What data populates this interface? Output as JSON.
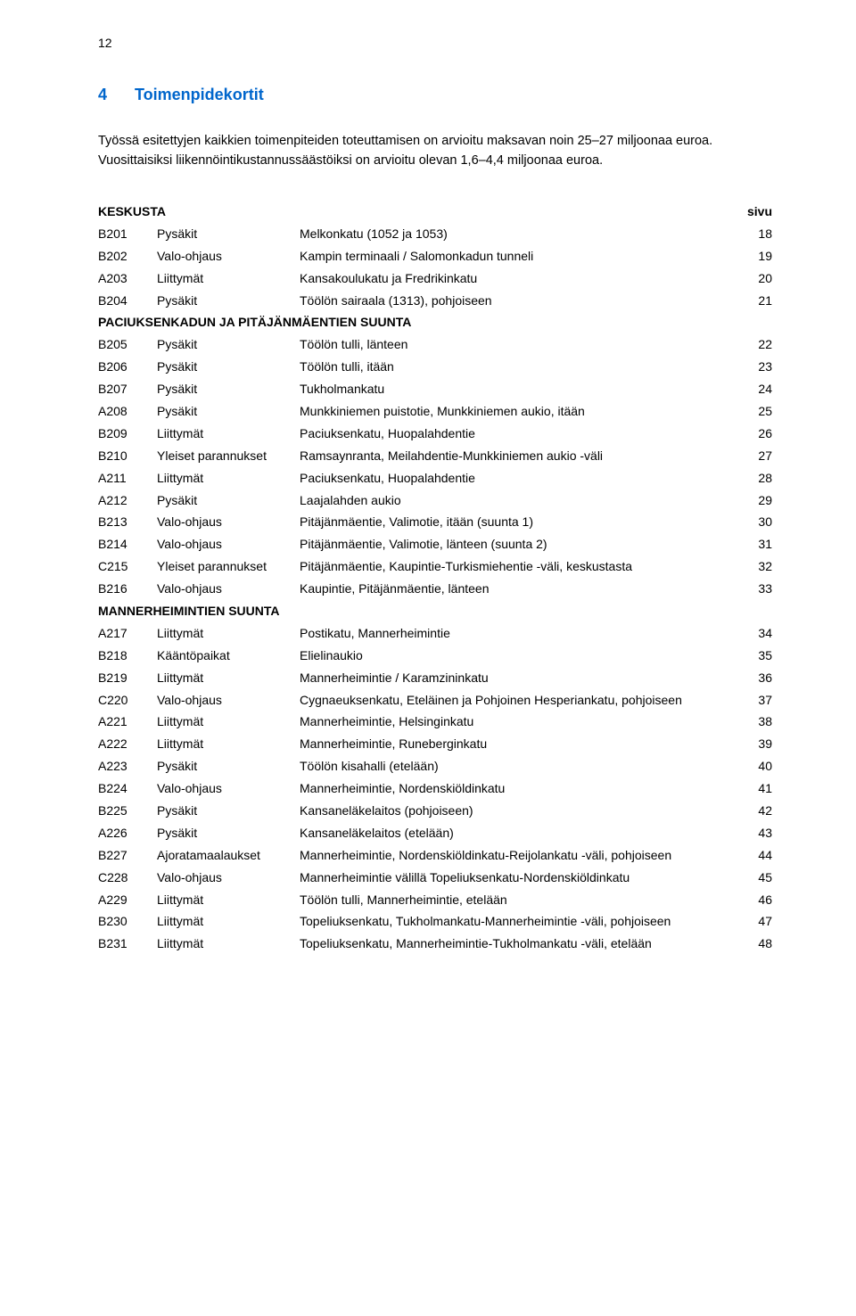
{
  "page_number": "12",
  "section": {
    "number": "4",
    "title": "Toimenpidekortit"
  },
  "intro": "Työssä esitettyjen kaikkien toimenpiteiden toteuttamisen on arvioitu maksavan noin 25–27 miljoonaa euroa. Vuosittaisiksi liikennöintikustannussäästöiksi on arvioitu olevan 1,6–4,4 miljoonaa euroa.",
  "sivu_label": "sivu",
  "groups": [
    {
      "title": "KESKUSTA",
      "show_sivu": true,
      "rows": [
        {
          "code": "B201",
          "type": "Pysäkit",
          "desc": "Melkonkatu (1052 ja 1053)",
          "page": "18"
        },
        {
          "code": "B202",
          "type": "Valo-ohjaus",
          "desc": "Kampin terminaali / Salomonkadun tunneli",
          "page": "19"
        },
        {
          "code": "A203",
          "type": "Liittymät",
          "desc": "Kansakoulukatu ja Fredrikinkatu",
          "page": "20"
        },
        {
          "code": "B204",
          "type": "Pysäkit",
          "desc": "Töölön sairaala (1313), pohjoiseen",
          "page": "21"
        }
      ]
    },
    {
      "title": "PACIUKSENKADUN JA PITÄJÄNMÄENTIEN SUUNTA",
      "show_sivu": false,
      "rows": [
        {
          "code": "B205",
          "type": "Pysäkit",
          "desc": "Töölön tulli, länteen",
          "page": "22"
        },
        {
          "code": "B206",
          "type": "Pysäkit",
          "desc": "Töölön tulli, itään",
          "page": "23"
        },
        {
          "code": "B207",
          "type": "Pysäkit",
          "desc": "Tukholmankatu",
          "page": "24"
        },
        {
          "code": "A208",
          "type": "Pysäkit",
          "desc": "Munkkiniemen puistotie, Munkkiniemen aukio, itään",
          "page": "25"
        },
        {
          "code": "B209",
          "type": "Liittymät",
          "desc": "Paciuksenkatu, Huopalahdentie",
          "page": "26"
        },
        {
          "code": "B210",
          "type": "Yleiset parannukset",
          "desc": "Ramsaynranta, Meilahdentie-Munkkiniemen aukio -väli",
          "page": "27"
        },
        {
          "code": "A211",
          "type": "Liittymät",
          "desc": "Paciuksenkatu, Huopalahdentie",
          "page": "28"
        },
        {
          "code": "A212",
          "type": "Pysäkit",
          "desc": "Laajalahden aukio",
          "page": "29"
        },
        {
          "code": "B213",
          "type": "Valo-ohjaus",
          "desc": "Pitäjänmäentie, Valimotie, itään (suunta 1)",
          "page": "30"
        },
        {
          "code": "B214",
          "type": "Valo-ohjaus",
          "desc": "Pitäjänmäentie, Valimotie, länteen (suunta 2)",
          "page": "31"
        },
        {
          "code": "C215",
          "type": "Yleiset parannukset",
          "desc": "Pitäjänmäentie, Kaupintie-Turkismiehentie -väli, keskustasta",
          "page": "32"
        },
        {
          "code": "B216",
          "type": "Valo-ohjaus",
          "desc": "Kaupintie, Pitäjänmäentie, länteen",
          "page": "33"
        }
      ]
    },
    {
      "title": "MANNERHEIMINTIEN SUUNTA",
      "show_sivu": false,
      "rows": [
        {
          "code": "A217",
          "type": "Liittymät",
          "desc": "Postikatu, Mannerheimintie",
          "page": "34"
        },
        {
          "code": "B218",
          "type": "Kääntöpaikat",
          "desc": "Elielinaukio",
          "page": "35"
        },
        {
          "code": "B219",
          "type": "Liittymät",
          "desc": "Mannerheimintie / Karamzininkatu",
          "page": "36"
        },
        {
          "code": "C220",
          "type": "Valo-ohjaus",
          "desc": "Cygnaeuksenkatu, Eteläinen ja Pohjoinen Hesperiankatu, pohjoiseen",
          "page": "37"
        },
        {
          "code": "A221",
          "type": "Liittymät",
          "desc": "Mannerheimintie, Helsinginkatu",
          "page": "38"
        },
        {
          "code": "A222",
          "type": "Liittymät",
          "desc": "Mannerheimintie, Runeberginkatu",
          "page": "39"
        },
        {
          "code": "A223",
          "type": "Pysäkit",
          "desc": "Töölön kisahalli (etelään)",
          "page": "40"
        },
        {
          "code": "B224",
          "type": "Valo-ohjaus",
          "desc": "Mannerheimintie, Nordenskiöldinkatu",
          "page": "41"
        },
        {
          "code": "B225",
          "type": "Pysäkit",
          "desc": "Kansaneläkelaitos (pohjoiseen)",
          "page": "42"
        },
        {
          "code": "A226",
          "type": "Pysäkit",
          "desc": "Kansaneläkelaitos (etelään)",
          "page": "43"
        },
        {
          "code": "B227",
          "type": "Ajoratamaalaukset",
          "desc": "Mannerheimintie, Nordenskiöldinkatu-Reijolankatu -väli, pohjoiseen",
          "page": "44"
        },
        {
          "code": "C228",
          "type": "Valo-ohjaus",
          "desc": "Mannerheimintie välillä Topeliuksenkatu-Nordenskiöldinkatu",
          "page": "45"
        },
        {
          "code": "A229",
          "type": "Liittymät",
          "desc": "Töölön tulli, Mannerheimintie, etelään",
          "page": "46"
        },
        {
          "code": "B230",
          "type": "Liittymät",
          "desc": "Topeliuksenkatu, Tukholmankatu-Mannerheimintie -väli, pohjoiseen",
          "page": "47"
        },
        {
          "code": "B231",
          "type": "Liittymät",
          "desc": "Topeliuksenkatu, Mannerheimintie-Tukholmankatu -väli, etelään",
          "page": "48"
        }
      ]
    }
  ]
}
